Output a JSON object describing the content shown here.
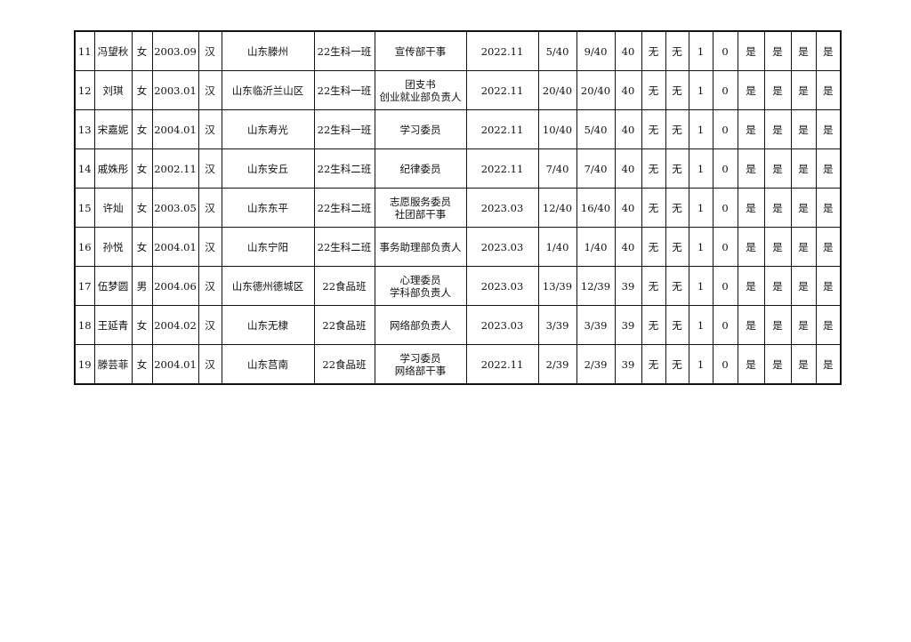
{
  "rows": [
    [
      "11",
      "冯望秋",
      "女",
      "2003.09",
      "汉",
      "山东滕州",
      "22生科一班",
      [
        "宣传部干事"
      ],
      "2022.11",
      "5/40",
      "9/40",
      "40",
      "无",
      "无",
      "1",
      "0",
      "是",
      "是",
      "是",
      "是"
    ],
    [
      "12",
      "刘琪",
      "女",
      "2003.01",
      "汉",
      "山东临沂兰山区",
      "22生科一班",
      [
        "团支书",
        "创业就业部负责人"
      ],
      "2022.11",
      "20/40",
      "20/40",
      "40",
      "无",
      "无",
      "1",
      "0",
      "是",
      "是",
      "是",
      "是"
    ],
    [
      "13",
      "宋嘉妮",
      "女",
      "2004.01",
      "汉",
      "山东寿光",
      "22生科一班",
      [
        "学习委员"
      ],
      "2022.11",
      "10/40",
      "5/40",
      "40",
      "无",
      "无",
      "1",
      "0",
      "是",
      "是",
      "是",
      "是"
    ],
    [
      "14",
      "戚姝彤",
      "女",
      "2002.11",
      "汉",
      "山东安丘",
      "22生科二班",
      [
        "纪律委员"
      ],
      "2022.11",
      "7/40",
      "7/40",
      "40",
      "无",
      "无",
      "1",
      "0",
      "是",
      "是",
      "是",
      "是"
    ],
    [
      "15",
      "许灿",
      "女",
      "2003.05",
      "汉",
      "山东东平",
      "22生科二班",
      [
        "志愿服务委员",
        "社团部干事"
      ],
      "2023.03",
      "12/40",
      "16/40",
      "40",
      "无",
      "无",
      "1",
      "0",
      "是",
      "是",
      "是",
      "是"
    ],
    [
      "16",
      "孙悦",
      "女",
      "2004.01",
      "汉",
      "山东宁阳",
      "22生科二班",
      [
        "事务助理部负责人"
      ],
      "2023.03",
      "1/40",
      "1/40",
      "40",
      "无",
      "无",
      "1",
      "0",
      "是",
      "是",
      "是",
      "是"
    ],
    [
      "17",
      "伍梦圆",
      "男",
      "2004.06",
      "汉",
      "山东德州德城区",
      "22食品班",
      [
        "心理委员",
        "学科部负责人"
      ],
      "2023.03",
      "13/39",
      "12/39",
      "39",
      "无",
      "无",
      "1",
      "0",
      "是",
      "是",
      "是",
      "是"
    ],
    [
      "18",
      "王延青",
      "女",
      "2004.02",
      "汉",
      "山东无棣",
      "22食品班",
      [
        "网络部负责人"
      ],
      "2023.03",
      "3/39",
      "3/39",
      "39",
      "无",
      "无",
      "1",
      "0",
      "是",
      "是",
      "是",
      "是"
    ],
    [
      "19",
      "滕芸菲",
      "女",
      "2004.01",
      "汉",
      "山东莒南",
      "22食品班",
      [
        "学习委员",
        "网络部干事"
      ],
      "2022.11",
      "2/39",
      "2/39",
      "39",
      "无",
      "无",
      "1",
      "0",
      "是",
      "是",
      "是",
      "是"
    ]
  ]
}
